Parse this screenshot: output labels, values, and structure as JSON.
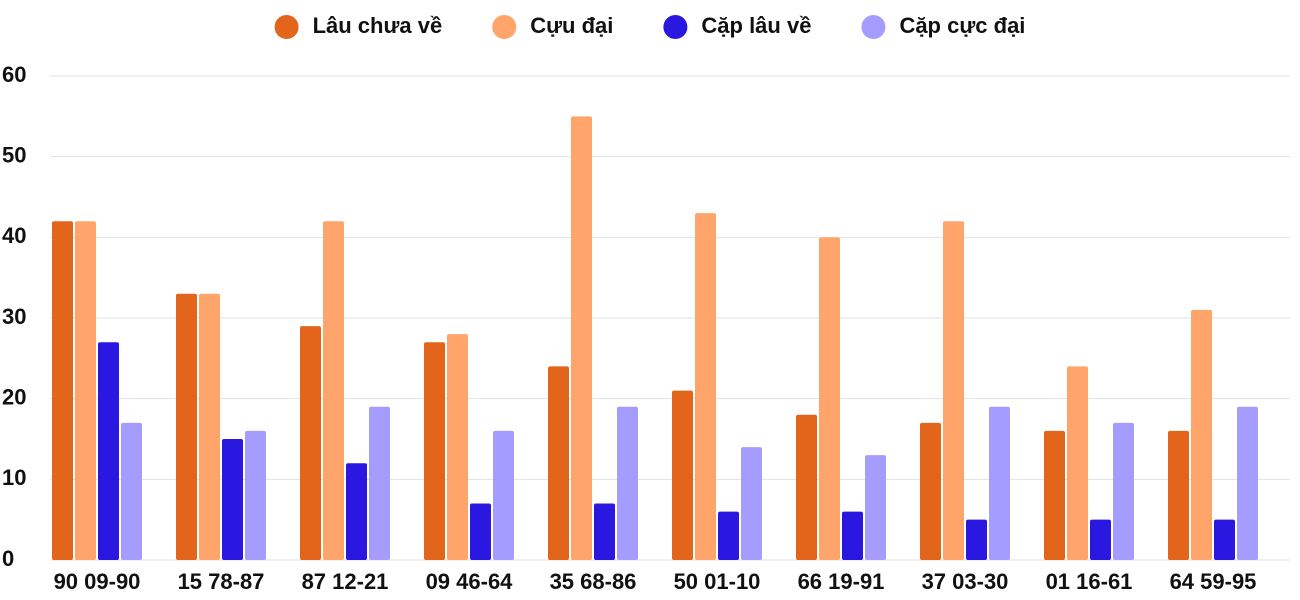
{
  "chart_data": {
    "type": "bar",
    "categories": [
      "90 09-90",
      "15 78-87",
      "87 12-21",
      "09 46-64",
      "35 68-86",
      "50 01-10",
      "66 19-91",
      "37 03-30",
      "01 16-61",
      "64 59-95"
    ],
    "series": [
      {
        "name": "Lâu chưa về",
        "color": "#e3641b",
        "values": [
          42,
          33,
          29,
          27,
          24,
          21,
          18,
          17,
          16,
          16
        ]
      },
      {
        "name": "Cựu đại",
        "color": "#ffa46a",
        "values": [
          42,
          33,
          42,
          28,
          55,
          43,
          40,
          42,
          24,
          31
        ]
      },
      {
        "name": "Cặp lâu về",
        "color": "#2a17e0",
        "values": [
          27,
          15,
          12,
          7,
          7,
          6,
          6,
          5,
          5,
          5
        ]
      },
      {
        "name": "Cặp cực đại",
        "color": "#a59cff",
        "values": [
          17,
          16,
          19,
          16,
          19,
          14,
          13,
          19,
          17,
          19
        ]
      }
    ],
    "ylim": [
      0,
      60
    ],
    "yticks": [
      0,
      10,
      20,
      30,
      40,
      50,
      60
    ],
    "grid": true,
    "legend": "top"
  }
}
